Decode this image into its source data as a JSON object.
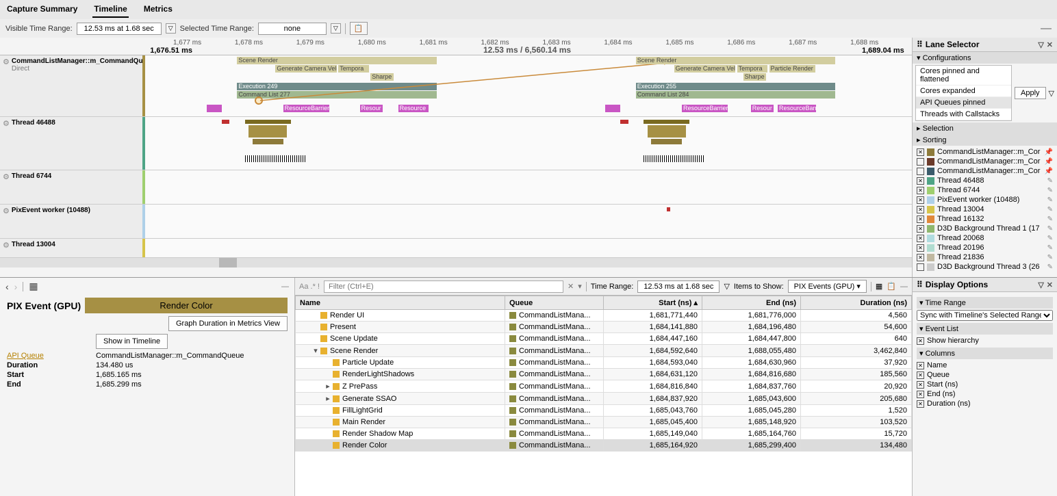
{
  "tabs": {
    "capture": "Capture Summary",
    "timeline": "Timeline",
    "metrics": "Metrics",
    "active": "timeline"
  },
  "toolbar": {
    "visible_label": "Visible Time Range:",
    "visible_value": "12.53 ms at 1.68 sec",
    "selected_label": "Selected Time Range:",
    "selected_value": "none"
  },
  "ruler": {
    "left_label": "1,676.51 ms",
    "right_label": "1,689.04 ms",
    "center_label": "12.53 ms / 6,560.14 ms",
    "ticks": [
      "1,677 ms",
      "1,678 ms",
      "1,679 ms",
      "1,680 ms",
      "1,681 ms",
      "1,682 ms",
      "1,683 ms",
      "1,684 ms",
      "1,685 ms",
      "1,686 ms",
      "1,687 ms",
      "1,688 ms"
    ]
  },
  "lanes": {
    "cmd": {
      "name": "CommandListManager::m_CommandQueue",
      "sub": "Direct"
    },
    "t46488": "Thread 46488",
    "t6744": "Thread 6744",
    "pix": "PixEvent worker (10488)",
    "t13004": "Thread 13004"
  },
  "lane_bars": {
    "scene_render": "Scene Render",
    "gen_cam": "Generate Camera Velo",
    "tempor": "Tempora",
    "sharpe": "Sharpe",
    "exec249": "Execution 249",
    "cl277": "Command List 277",
    "exec255": "Execution 255",
    "cl284": "Command List 284",
    "resbar": "ResourceBarrier",
    "resour": "Resour",
    "resource": "Resource",
    "particle": "Particle Render"
  },
  "lane_selector": {
    "title": "Lane Selector",
    "config_hdr": "Configurations",
    "configs": [
      "Cores pinned and flattened",
      "Cores expanded",
      "API Queues pinned",
      "Threads with Callstacks"
    ],
    "apply": "Apply",
    "selection_hdr": "Selection",
    "sorting_hdr": "Sorting",
    "items": [
      {
        "checked": true,
        "color": "#8d7a3a",
        "name": "CommandListManager::m_Cor",
        "pinned": true
      },
      {
        "checked": false,
        "color": "#6b3a2a",
        "name": "CommandListManager::m_Cor",
        "pinned": true
      },
      {
        "checked": false,
        "color": "#3a5b6b",
        "name": "CommandListManager::m_Cor",
        "pinned": true
      },
      {
        "checked": true,
        "color": "#4ea486",
        "name": "Thread 46488",
        "pinned": false
      },
      {
        "checked": true,
        "color": "#9fcf6f",
        "name": "Thread 6744",
        "pinned": false
      },
      {
        "checked": true,
        "color": "#aed0e8",
        "name": "PixEvent worker (10488)",
        "pinned": false
      },
      {
        "checked": true,
        "color": "#d6c44a",
        "name": "Thread 13004",
        "pinned": false
      },
      {
        "checked": true,
        "color": "#e0883a",
        "name": "Thread 16132",
        "pinned": false
      },
      {
        "checked": true,
        "color": "#8fb86f",
        "name": "D3D Background Thread 1 (17",
        "pinned": false
      },
      {
        "checked": true,
        "color": "#b0dce0",
        "name": "Thread 20068",
        "pinned": false
      },
      {
        "checked": true,
        "color": "#b0dcd0",
        "name": "Thread 20196",
        "pinned": false
      },
      {
        "checked": true,
        "color": "#c0b8a0",
        "name": "Thread 21836",
        "pinned": false
      },
      {
        "checked": false,
        "color": "#ccc",
        "name": "D3D Background Thread 3 (26",
        "pinned": false
      }
    ]
  },
  "detail": {
    "title": "PIX Event (GPU)",
    "badge": "Render Color",
    "graph_btn": "Graph Duration in Metrics View",
    "show_btn": "Show in Timeline",
    "api_queue_k": "API Queue",
    "api_queue_v": "CommandListManager::m_CommandQueue",
    "duration_k": "Duration",
    "duration_v": "134.480 us",
    "start_k": "Start",
    "start_v": "1,685.165 ms",
    "end_k": "End",
    "end_v": "1,685.299 ms"
  },
  "events_toolbar": {
    "filter_hint": "Aa .* !",
    "filter_placeholder": "Filter (Ctrl+E)",
    "time_range_label": "Time Range:",
    "time_range_value": "12.53 ms at 1.68 sec",
    "items_label": "Items to Show:",
    "items_value": "PIX Events (GPU)"
  },
  "events_cols": {
    "name": "Name",
    "queue": "Queue",
    "start": "Start (ns)",
    "end": "End (ns)",
    "dur": "Duration (ns)"
  },
  "events": [
    {
      "indent": 1,
      "toggle": "",
      "name": "Render UI",
      "queue": "CommandListMana...",
      "start": "1,681,771,440",
      "end": "1,681,776,000",
      "dur": "4,560"
    },
    {
      "indent": 1,
      "toggle": "",
      "name": "Present",
      "queue": "CommandListMana...",
      "start": "1,684,141,880",
      "end": "1,684,196,480",
      "dur": "54,600"
    },
    {
      "indent": 1,
      "toggle": "",
      "name": "Scene Update",
      "queue": "CommandListMana...",
      "start": "1,684,447,160",
      "end": "1,684,447,800",
      "dur": "640"
    },
    {
      "indent": 1,
      "toggle": "▾",
      "name": "Scene Render",
      "queue": "CommandListMana...",
      "start": "1,684,592,640",
      "end": "1,688,055,480",
      "dur": "3,462,840"
    },
    {
      "indent": 2,
      "toggle": "",
      "name": "Particle Update",
      "queue": "CommandListMana...",
      "start": "1,684,593,040",
      "end": "1,684,630,960",
      "dur": "37,920"
    },
    {
      "indent": 2,
      "toggle": "",
      "name": "RenderLightShadows",
      "queue": "CommandListMana...",
      "start": "1,684,631,120",
      "end": "1,684,816,680",
      "dur": "185,560"
    },
    {
      "indent": 2,
      "toggle": "▸",
      "name": "Z PrePass",
      "queue": "CommandListMana...",
      "start": "1,684,816,840",
      "end": "1,684,837,760",
      "dur": "20,920"
    },
    {
      "indent": 2,
      "toggle": "▸",
      "name": "Generate SSAO",
      "queue": "CommandListMana...",
      "start": "1,684,837,920",
      "end": "1,685,043,600",
      "dur": "205,680"
    },
    {
      "indent": 2,
      "toggle": "",
      "name": "FillLightGrid",
      "queue": "CommandListMana...",
      "start": "1,685,043,760",
      "end": "1,685,045,280",
      "dur": "1,520"
    },
    {
      "indent": 2,
      "toggle": "",
      "name": "Main Render",
      "queue": "CommandListMana...",
      "start": "1,685,045,400",
      "end": "1,685,148,920",
      "dur": "103,520"
    },
    {
      "indent": 2,
      "toggle": "",
      "name": "Render Shadow Map",
      "queue": "CommandListMana...",
      "start": "1,685,149,040",
      "end": "1,685,164,760",
      "dur": "15,720"
    },
    {
      "indent": 2,
      "toggle": "",
      "name": "Render Color",
      "queue": "CommandListMana...",
      "start": "1,685,164,920",
      "end": "1,685,299,400",
      "dur": "134,480",
      "sel": true
    }
  ],
  "display": {
    "title": "Display Options",
    "time_range_hdr": "Time Range",
    "sync_value": "Sync with Timeline's Selected Range",
    "event_list_hdr": "Event List",
    "show_hierarchy": "Show hierarchy",
    "columns_hdr": "Columns",
    "cols": [
      "Name",
      "Queue",
      "Start (ns)",
      "End (ns)",
      "Duration (ns)"
    ]
  }
}
